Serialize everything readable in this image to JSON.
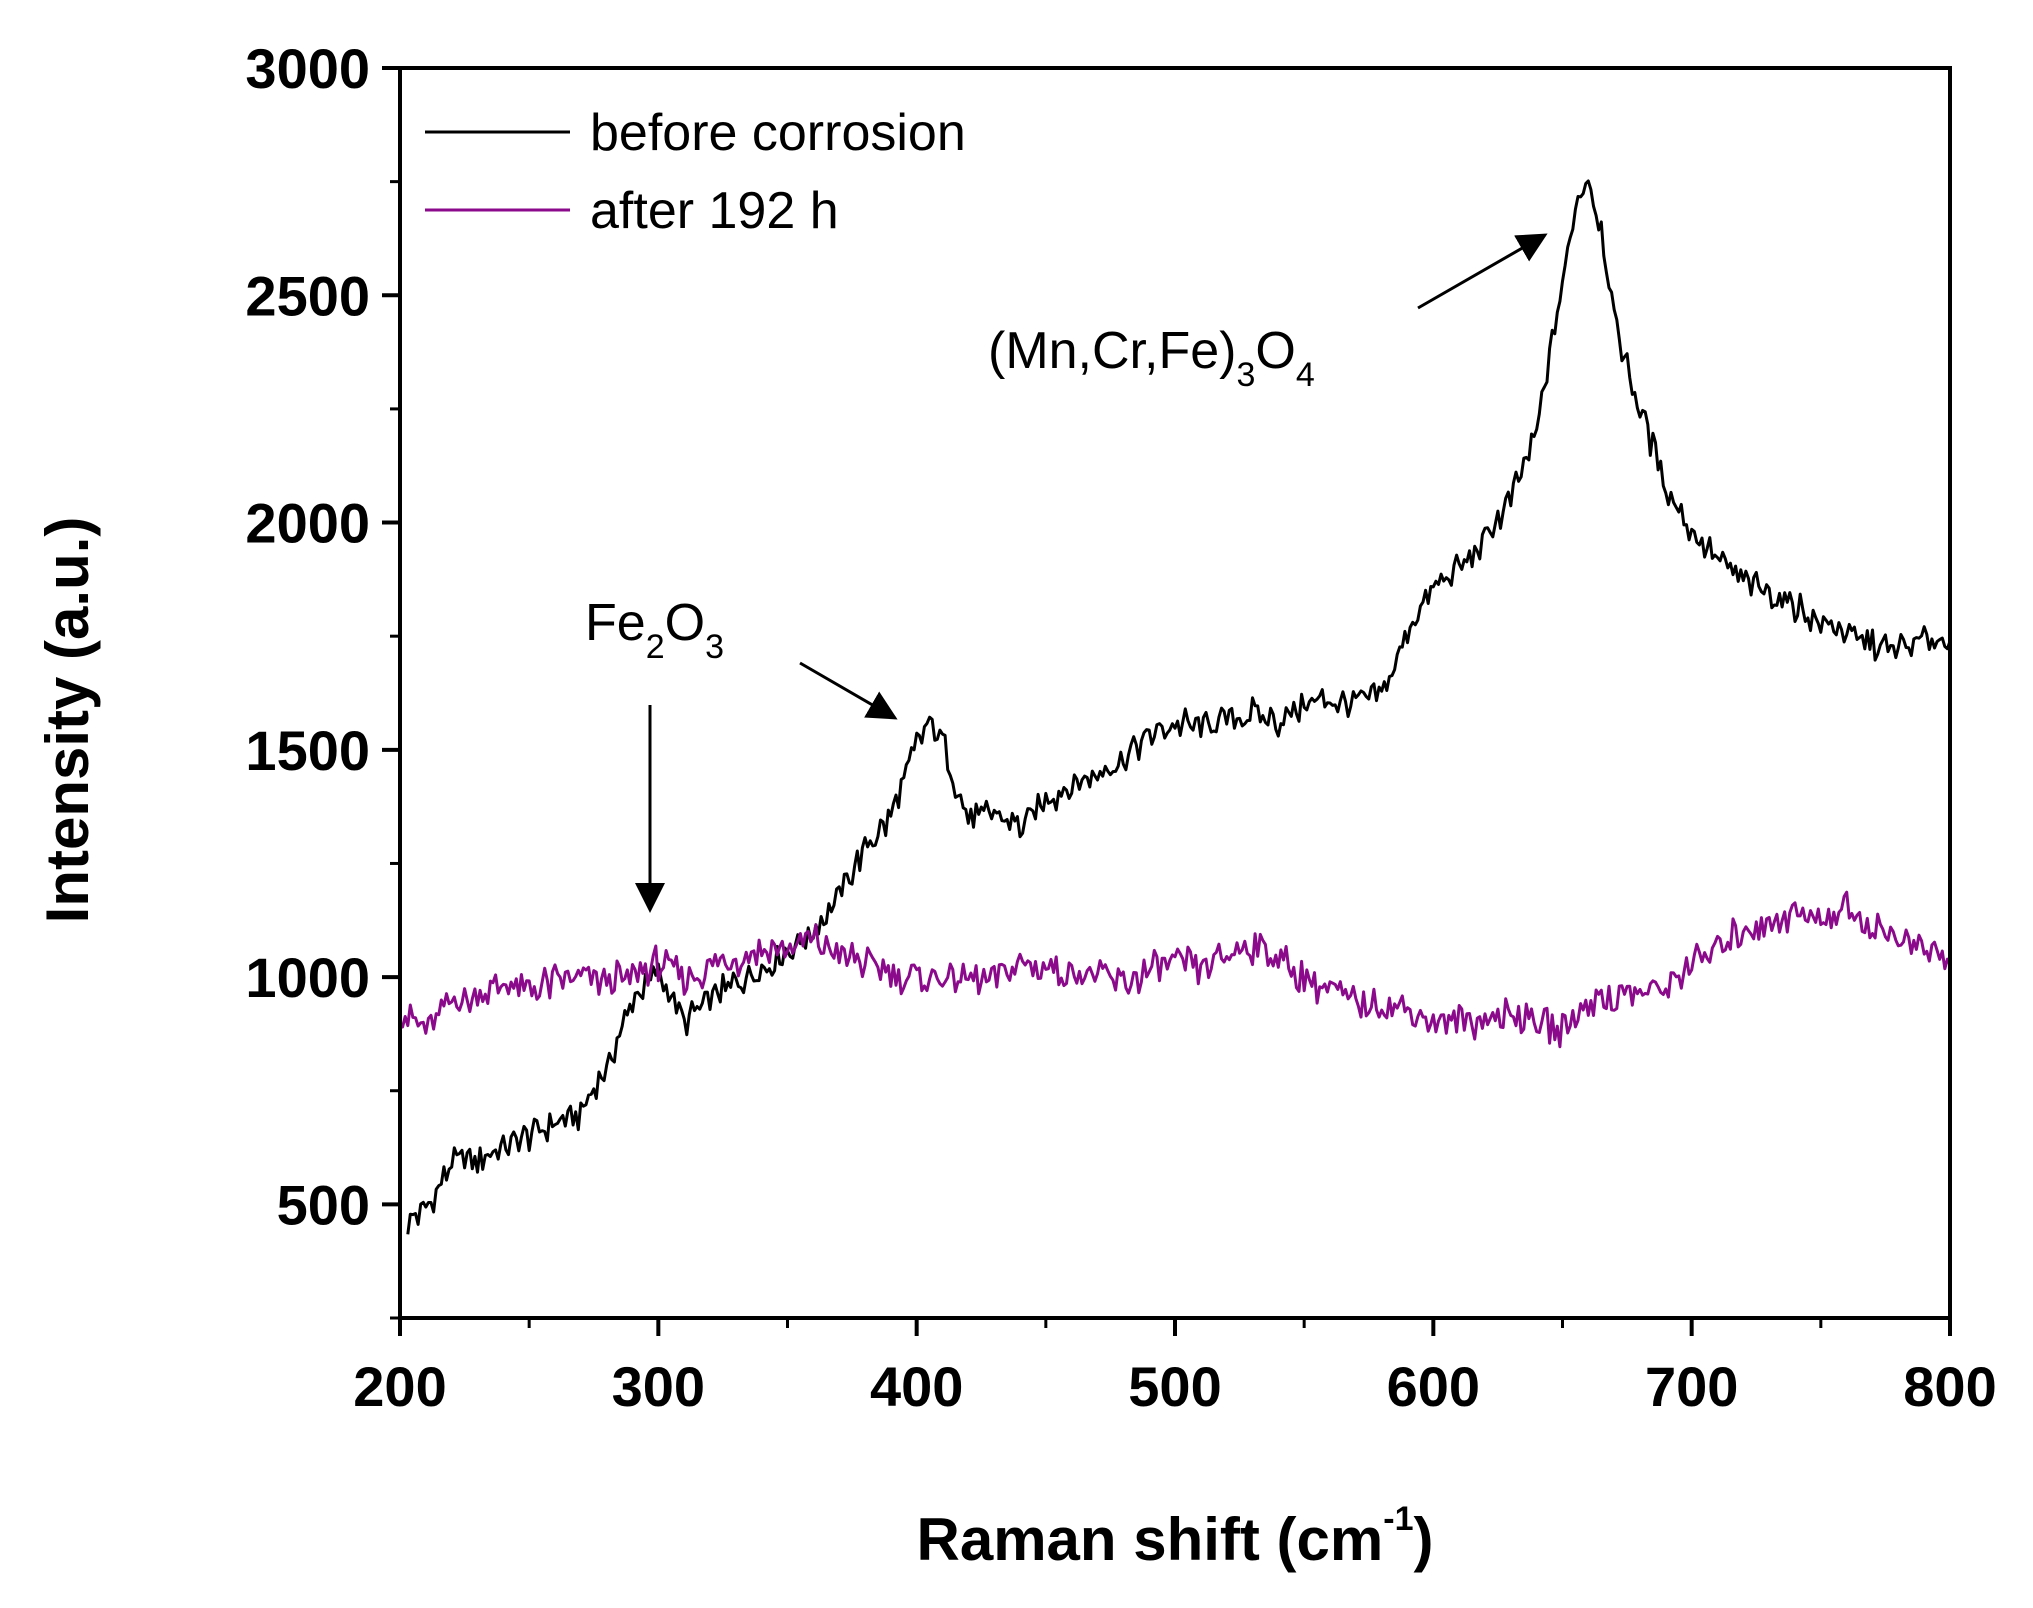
{
  "chart_data": {
    "type": "line",
    "xlabel": "Raman shift (cm",
    "xlabel_sup": "-1",
    "xlabel_close": ")",
    "ylabel": "Intensity (a.u.)",
    "xlim": [
      200,
      800
    ],
    "ylim": [
      250,
      3000
    ],
    "xticks": [
      "200",
      "300",
      "400",
      "500",
      "600",
      "700",
      "800"
    ],
    "yticks": [
      "500",
      "1000",
      "1500",
      "2000",
      "2500",
      "3000"
    ],
    "legend_position": "top-left",
    "series": [
      {
        "name": "before corrosion",
        "color": "#000000",
        "x": [
          203,
          210,
          220,
          230,
          240,
          250,
          260,
          270,
          280,
          290,
          300,
          305,
          310,
          320,
          330,
          340,
          350,
          360,
          370,
          380,
          390,
          400,
          405,
          410,
          415,
          420,
          430,
          440,
          450,
          460,
          470,
          480,
          490,
          500,
          510,
          520,
          530,
          540,
          550,
          560,
          570,
          580,
          590,
          600,
          610,
          620,
          630,
          640,
          650,
          655,
          660,
          665,
          670,
          680,
          690,
          700,
          710,
          720,
          730,
          740,
          750,
          760,
          770,
          780,
          790,
          800
        ],
        "y": [
          460,
          490,
          590,
          600,
          620,
          650,
          680,
          700,
          800,
          950,
          1010,
          960,
          900,
          950,
          990,
          1020,
          1060,
          1100,
          1180,
          1280,
          1350,
          1510,
          1560,
          1520,
          1420,
          1350,
          1360,
          1330,
          1390,
          1420,
          1450,
          1480,
          1530,
          1560,
          1550,
          1570,
          1580,
          1560,
          1600,
          1610,
          1600,
          1620,
          1760,
          1850,
          1900,
          1960,
          2050,
          2200,
          2520,
          2700,
          2760,
          2650,
          2450,
          2250,
          2080,
          1980,
          1920,
          1870,
          1850,
          1820,
          1780,
          1760,
          1730,
          1720,
          1740,
          1750
        ]
      },
      {
        "name": "after 192 h",
        "color": "#8b0a8b",
        "x": [
          200,
          210,
          220,
          230,
          240,
          250,
          260,
          270,
          280,
          290,
          300,
          310,
          320,
          330,
          340,
          350,
          360,
          370,
          380,
          390,
          400,
          410,
          420,
          430,
          440,
          450,
          460,
          470,
          480,
          490,
          500,
          510,
          520,
          530,
          540,
          550,
          560,
          570,
          580,
          590,
          600,
          610,
          620,
          630,
          640,
          650,
          660,
          670,
          680,
          690,
          700,
          710,
          720,
          730,
          740,
          750,
          760,
          770,
          780,
          790,
          800
        ],
        "y": [
          930,
          880,
          950,
          960,
          980,
          970,
          990,
          1000,
          990,
          1000,
          1030,
          1000,
          1020,
          1040,
          1060,
          1060,
          1080,
          1050,
          1030,
          1010,
          1000,
          1000,
          990,
          1000,
          1030,
          1020,
          1010,
          1000,
          990,
          1010,
          1030,
          1020,
          1050,
          1070,
          1040,
          1000,
          970,
          940,
          940,
          930,
          900,
          900,
          910,
          920,
          910,
          880,
          950,
          960,
          960,
          980,
          1030,
          1060,
          1110,
          1120,
          1140,
          1130,
          1150,
          1110,
          1090,
          1060,
          1040
        ]
      }
    ],
    "annotations": [
      {
        "base": "Fe",
        "sub1": "2",
        "mid": "O",
        "sub2": "3"
      },
      {
        "prefix": "(Mn,Cr,Fe)",
        "sub1": "3",
        "mid": "O",
        "sub2": "4"
      }
    ]
  }
}
